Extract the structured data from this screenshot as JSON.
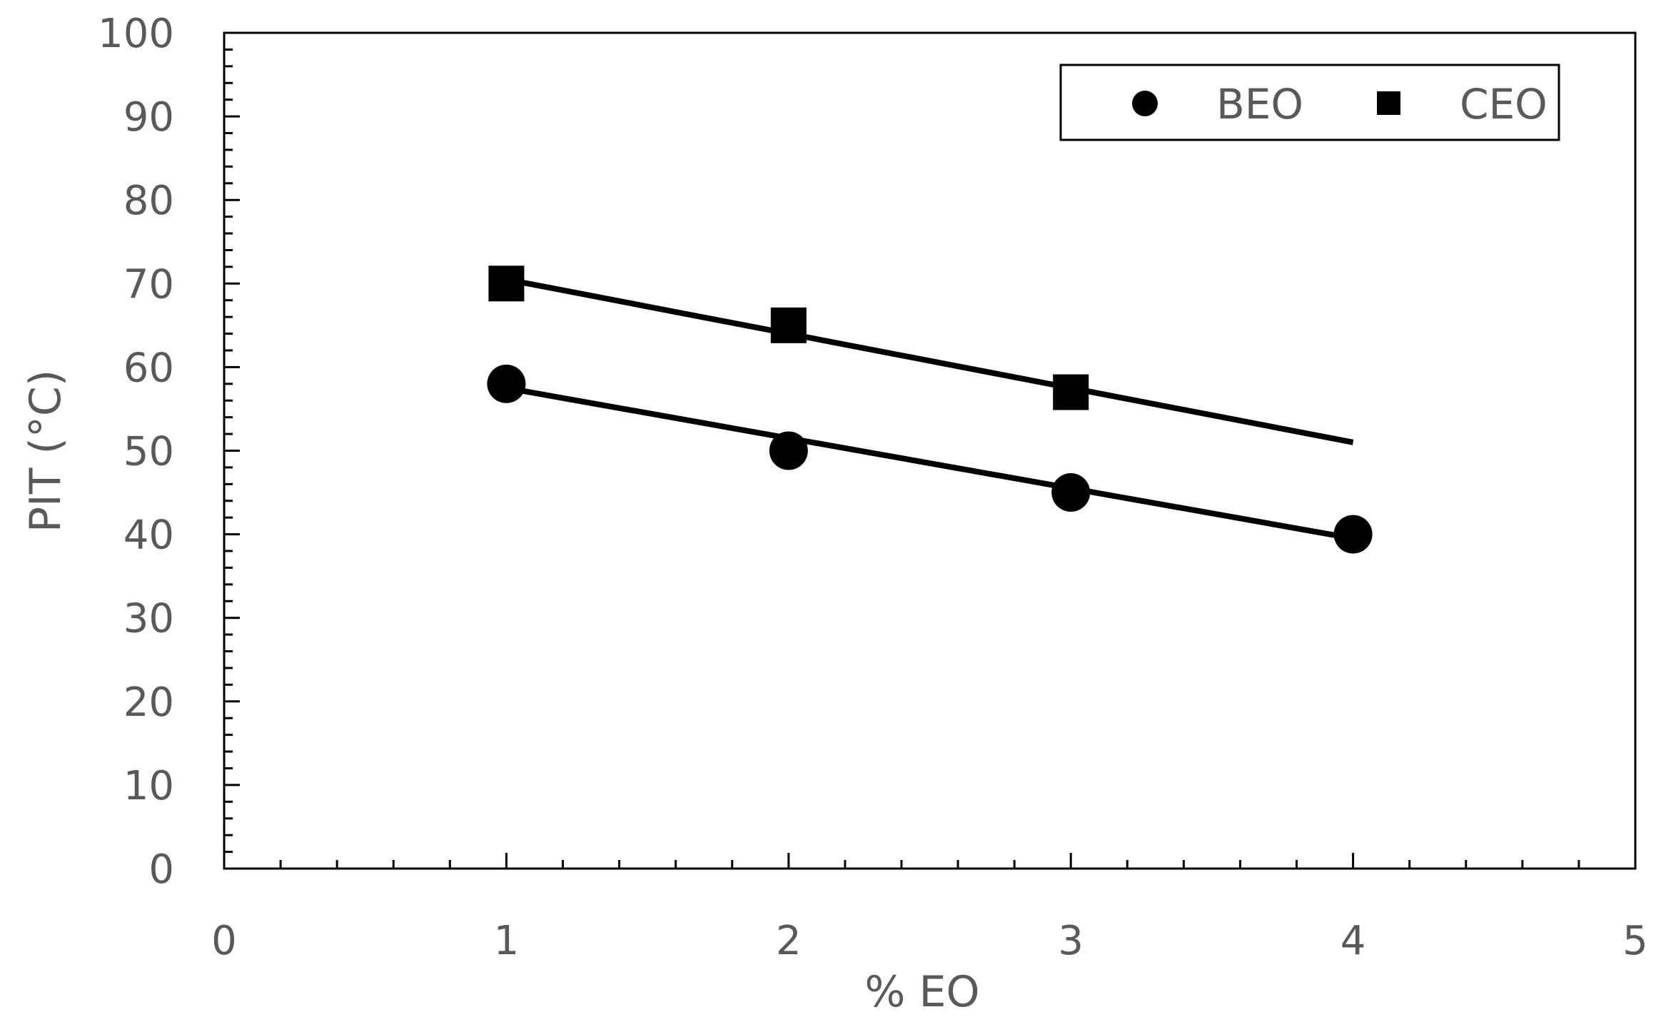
{
  "chart_data": {
    "type": "scatter",
    "title": "",
    "xlabel": "% EO",
    "ylabel": "PIT (°C)",
    "xlim": [
      0,
      5
    ],
    "ylim": [
      0,
      100
    ],
    "x_ticks": [
      "0",
      "1",
      "2",
      "3",
      "4",
      "5"
    ],
    "y_ticks": [
      "0",
      "10",
      "20",
      "30",
      "40",
      "50",
      "60",
      "70",
      "80",
      "90",
      "100"
    ],
    "grid": false,
    "legend_position": "top-right",
    "series": [
      {
        "name": "BEO",
        "marker": "circle",
        "color": "#000000",
        "x": [
          1,
          2,
          3,
          4
        ],
        "y": [
          58,
          50,
          45,
          40
        ],
        "trendline": {
          "x": [
            1,
            4
          ],
          "y": [
            57.5,
            39.5
          ]
        }
      },
      {
        "name": "CEO",
        "marker": "square",
        "color": "#000000",
        "x": [
          1,
          2,
          3
        ],
        "y": [
          70,
          65,
          57
        ],
        "trendline": {
          "x": [
            1,
            4
          ],
          "y": [
            70.5,
            51
          ]
        }
      }
    ]
  }
}
